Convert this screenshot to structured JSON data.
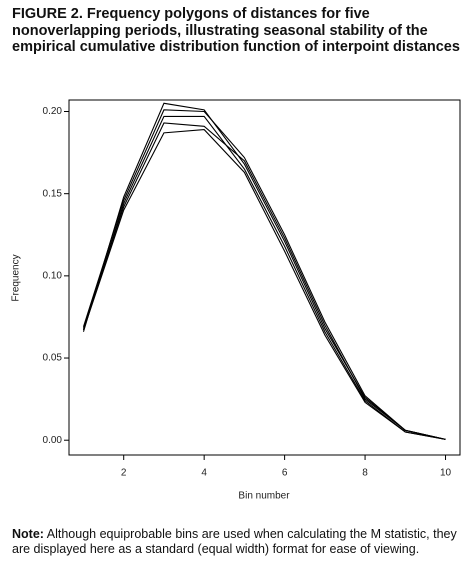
{
  "chart_data": {
    "type": "line",
    "title": "FIGURE 2. Frequency polygons of distances for five nonoverlapping periods, illustrating seasonal stability of the empirical cumulative distribution function of interpoint distances",
    "x_label": "Bin number",
    "y_label": "Frequency",
    "x": [
      1,
      2,
      3,
      4,
      5,
      6,
      7,
      8,
      9,
      10
    ],
    "series": [
      {
        "color": "#000000",
        "values": [
          0.066,
          0.148,
          0.205,
          0.201,
          0.168,
          0.121,
          0.068,
          0.026,
          0.006,
          0.0005
        ]
      },
      {
        "color": "#000000",
        "values": [
          0.069,
          0.146,
          0.201,
          0.2,
          0.172,
          0.125,
          0.072,
          0.027,
          0.006,
          0.0005
        ]
      },
      {
        "color": "#000000",
        "values": [
          0.067,
          0.144,
          0.197,
          0.197,
          0.165,
          0.118,
          0.066,
          0.024,
          0.005,
          0.0005
        ]
      },
      {
        "color": "#000000",
        "values": [
          0.068,
          0.142,
          0.193,
          0.191,
          0.17,
          0.123,
          0.07,
          0.025,
          0.006,
          0.0005
        ]
      },
      {
        "color": "#000000",
        "values": [
          0.067,
          0.14,
          0.187,
          0.189,
          0.163,
          0.115,
          0.064,
          0.023,
          0.005,
          0.0005
        ]
      }
    ],
    "xlim": [
      0.64,
      10.36
    ],
    "ylim": [
      -0.009,
      0.207
    ],
    "xticks": [
      2,
      4,
      6,
      8,
      10
    ],
    "yticks": [
      {
        "value": 0,
        "label": "0.00"
      },
      {
        "value": 0.05,
        "label": "0.05"
      },
      {
        "value": 0.1,
        "label": "0.10"
      },
      {
        "value": 0.15,
        "label": "0.15"
      },
      {
        "value": 0.2,
        "label": "0.20"
      }
    ],
    "grid": false,
    "note_label": "Note:",
    "note": "Although equiprobable bins are used when calculating the M statistic, they are displayed here as a standard (equal width) format for ease of viewing."
  }
}
